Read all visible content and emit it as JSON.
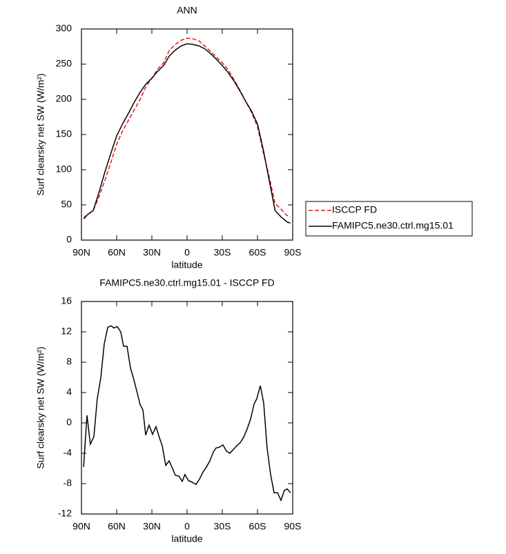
{
  "chart_data": [
    {
      "type": "line",
      "title": "ANN",
      "xlabel": "latitude",
      "ylabel": "Surf clearsky net SW (W/m²)",
      "x": [
        88,
        85,
        80,
        75,
        70,
        65,
        60,
        55,
        50,
        45,
        40,
        35,
        30,
        25,
        20,
        15,
        10,
        5,
        0,
        -5,
        -10,
        -15,
        -20,
        -25,
        -30,
        -35,
        -40,
        -45,
        -50,
        -55,
        -60,
        -65,
        -70,
        -75,
        -80,
        -85,
        -88
      ],
      "series": [
        {
          "name": "ISCCP FD",
          "color": "#e8141c",
          "linestyle": "dashed",
          "values": [
            32,
            36,
            42,
            62,
            85,
            110,
            136,
            155,
            170,
            185,
            200,
            218,
            230,
            243,
            252,
            270,
            278,
            284,
            287,
            286,
            283,
            276,
            268,
            260,
            252,
            242,
            228,
            213,
            197,
            181,
            161,
            124,
            90,
            52,
            44,
            35,
            33
          ]
        },
        {
          "name": "FAMIPC5.ne30.ctrl.mg15.01",
          "color": "#000000",
          "linestyle": "solid",
          "values": [
            30,
            36,
            42,
            68,
            97,
            123,
            148,
            165,
            180,
            196,
            210,
            222,
            230,
            240,
            248,
            262,
            270,
            276,
            279,
            278,
            276,
            272,
            265,
            257,
            248,
            238,
            226,
            212,
            197,
            183,
            165,
            128,
            85,
            42,
            33,
            26,
            24
          ]
        }
      ],
      "xlim": [
        90,
        -90
      ],
      "xticks": [
        {
          "value": 90,
          "label": "90N"
        },
        {
          "value": 60,
          "label": "60N"
        },
        {
          "value": 30,
          "label": "30N"
        },
        0,
        {
          "value": -30,
          "label": "30S"
        },
        {
          "value": -60,
          "label": "60S"
        },
        {
          "value": -90,
          "label": "90S"
        }
      ],
      "ylim": [
        0,
        300
      ],
      "yticks": [
        0,
        50,
        100,
        150,
        200,
        250,
        300
      ],
      "legend": "right"
    },
    {
      "type": "line",
      "title": "FAMIPC5.ne30.ctrl.mg15.01 - ISCCP FD",
      "xlabel": "latitude",
      "ylabel": "Surf clearsky net SW (W/m²)",
      "x": [
        88.2,
        85.3,
        82.4,
        79.4,
        76.5,
        73.5,
        70.6,
        67.6,
        64.7,
        62.4,
        59.4,
        56.5,
        54.1,
        51.2,
        48.2,
        45.9,
        42.9,
        40.0,
        37.6,
        35.3,
        32.4,
        29.4,
        26.5,
        23.5,
        21.2,
        18.2,
        15.3,
        12.4,
        10.0,
        7.1,
        4.1,
        1.8,
        -1.2,
        -4.1,
        -7.6,
        -10.6,
        -13.5,
        -16.5,
        -19.4,
        -22.4,
        -24.7,
        -27.6,
        -30.6,
        -33.5,
        -36.5,
        -39.4,
        -42.4,
        -45.3,
        -48.2,
        -51.2,
        -54.1,
        -57.1,
        -59.4,
        -62.4,
        -65.3,
        -68.2,
        -71.2,
        -74.1,
        -77.1,
        -80.0,
        -82.9,
        -85.3,
        -88.2
      ],
      "series": [
        {
          "name": "FAMIPC5.ne30.ctrl.mg15.01 - ISCCP FD",
          "color": "#000000",
          "linestyle": "solid",
          "values": [
            -5.8,
            1.0,
            -2.8,
            -1.8,
            3.2,
            6,
            10.4,
            12.6,
            12.8,
            12.5,
            12.7,
            12,
            10.1,
            10.1,
            7.2,
            6,
            4.2,
            2.4,
            1.7,
            -1.6,
            -0.3,
            -1.5,
            -0.5,
            -2,
            -3,
            -5.6,
            -5,
            -6,
            -6.9,
            -7,
            -7.7,
            -6.8,
            -7.6,
            -7.8,
            -8.1,
            -7.4,
            -6.5,
            -5.8,
            -5.0,
            -3.8,
            -3.3,
            -3.2,
            -2.9,
            -3.7,
            -4.0,
            -3.5,
            -3.0,
            -2.6,
            -1.9,
            -0.8,
            0.5,
            2.5,
            3.2,
            4.9,
            2.6,
            -3.3,
            -6.8,
            -9.2,
            -9.2,
            -10.2,
            -8.9,
            -8.7,
            -9.2
          ]
        }
      ],
      "xlim": [
        90,
        -90
      ],
      "xticks": [
        {
          "value": 90,
          "label": "90N"
        },
        {
          "value": 60,
          "label": "60N"
        },
        {
          "value": 30,
          "label": "30N"
        },
        0,
        {
          "value": -30,
          "label": "30S"
        },
        {
          "value": -60,
          "label": "60S"
        },
        {
          "value": -90,
          "label": "90S"
        }
      ],
      "ylim": [
        -12,
        16
      ],
      "yticks": [
        -12,
        -8,
        -4,
        0,
        4,
        8,
        12,
        16
      ]
    }
  ]
}
